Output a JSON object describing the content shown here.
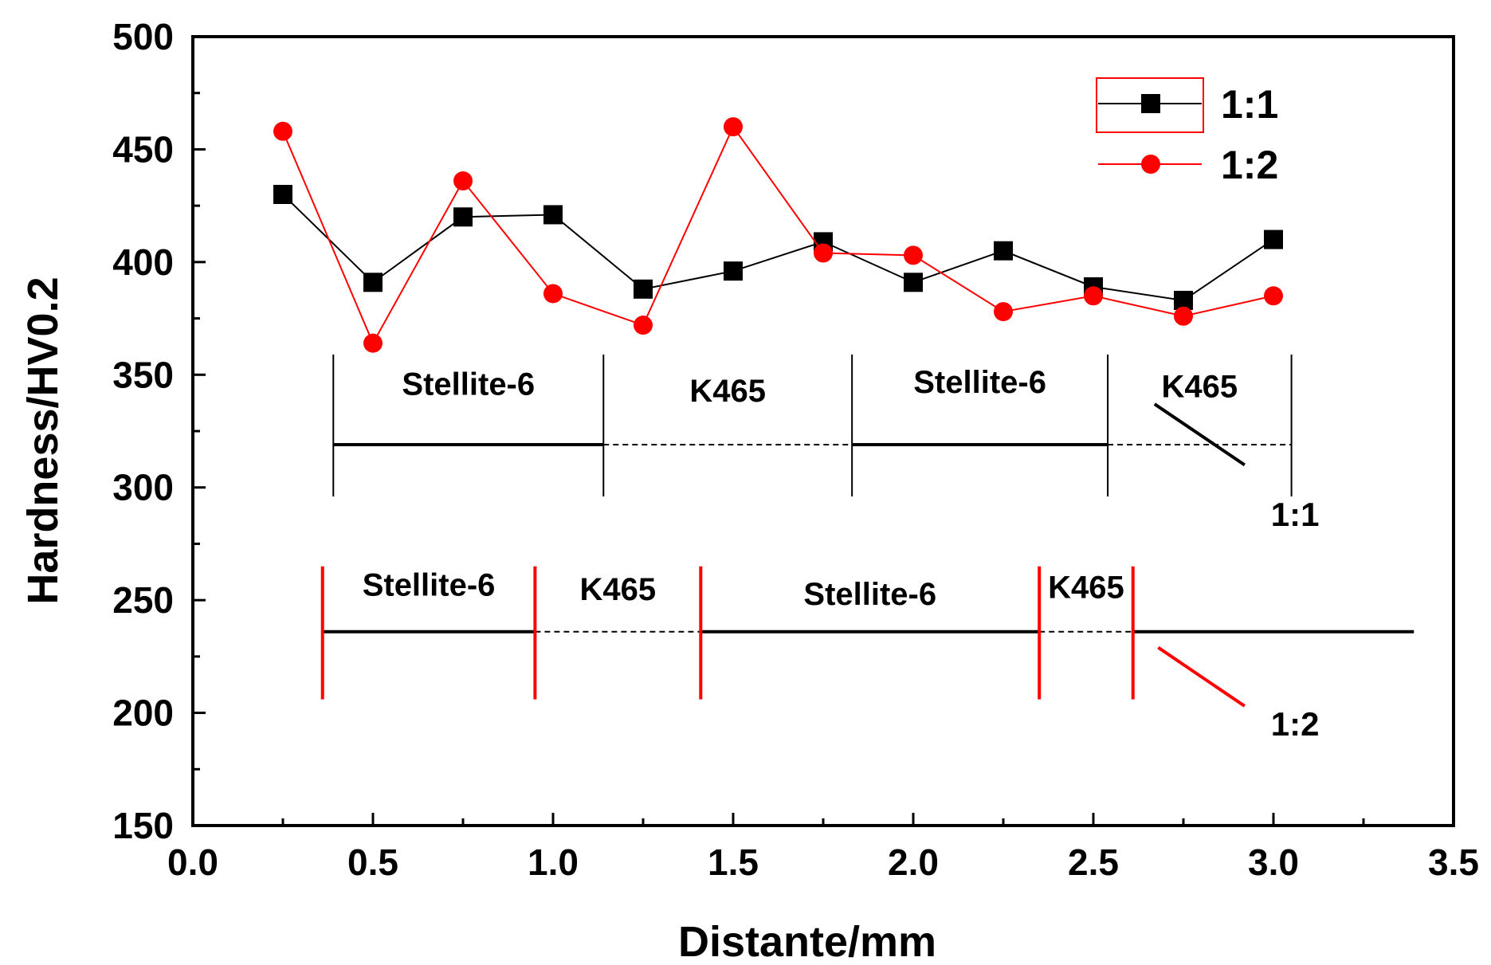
{
  "chart_data": {
    "type": "line",
    "title": "",
    "xlabel": "Distante/mm",
    "ylabel": "Hardness/HV0.2",
    "xlim": [
      0.0,
      3.5
    ],
    "ylim": [
      150,
      500
    ],
    "xticks": [
      "0.0",
      "0.5",
      "1.0",
      "1.5",
      "2.0",
      "2.5",
      "3.0",
      "3.5"
    ],
    "yticks": [
      "150",
      "200",
      "250",
      "300",
      "350",
      "400",
      "450",
      "500"
    ],
    "grid": false,
    "legend_position": "top-right",
    "series": [
      {
        "name": "1:1",
        "color": "#000000",
        "marker": "square",
        "x": [
          0.25,
          0.5,
          0.75,
          1.0,
          1.25,
          1.5,
          1.75,
          2.0,
          2.25,
          2.5,
          2.75,
          3.0
        ],
        "values": [
          430,
          391,
          420,
          421,
          388,
          396,
          409,
          391,
          405,
          389,
          383,
          410
        ]
      },
      {
        "name": "1:2",
        "color": "#ff0000",
        "marker": "circle",
        "x": [
          0.25,
          0.5,
          0.75,
          1.0,
          1.25,
          1.5,
          1.75,
          2.0,
          2.25,
          2.5,
          2.75,
          3.0
        ],
        "values": [
          458,
          364,
          436,
          386,
          372,
          460,
          404,
          403,
          378,
          385,
          376,
          385
        ]
      }
    ],
    "annotations": {
      "layer_map_1_1": {
        "callout": "1:1",
        "segments": [
          {
            "label": "Stellite-6",
            "from": 0.39,
            "to": 1.14,
            "line": "solid"
          },
          {
            "label": "K465",
            "from": 1.14,
            "to": 1.83,
            "line": "dashed"
          },
          {
            "label": "Stellite-6",
            "from": 1.83,
            "to": 2.54,
            "line": "solid"
          },
          {
            "label": "K465",
            "from": 2.54,
            "to": 3.05,
            "line": "dashed"
          }
        ]
      },
      "layer_map_1_2": {
        "callout": "1:2",
        "segments": [
          {
            "label": "Stellite-6",
            "from": 0.36,
            "to": 0.95,
            "line": "solid"
          },
          {
            "label": "K465",
            "from": 0.95,
            "to": 1.41,
            "line": "dashed"
          },
          {
            "label": "Stellite-6",
            "from": 1.41,
            "to": 2.35,
            "line": "solid"
          },
          {
            "label": "K465",
            "from": 2.35,
            "to": 2.61,
            "line": "dashed"
          },
          {
            "label": "",
            "from": 2.61,
            "to": 3.39,
            "line": "solid"
          }
        ]
      }
    }
  }
}
